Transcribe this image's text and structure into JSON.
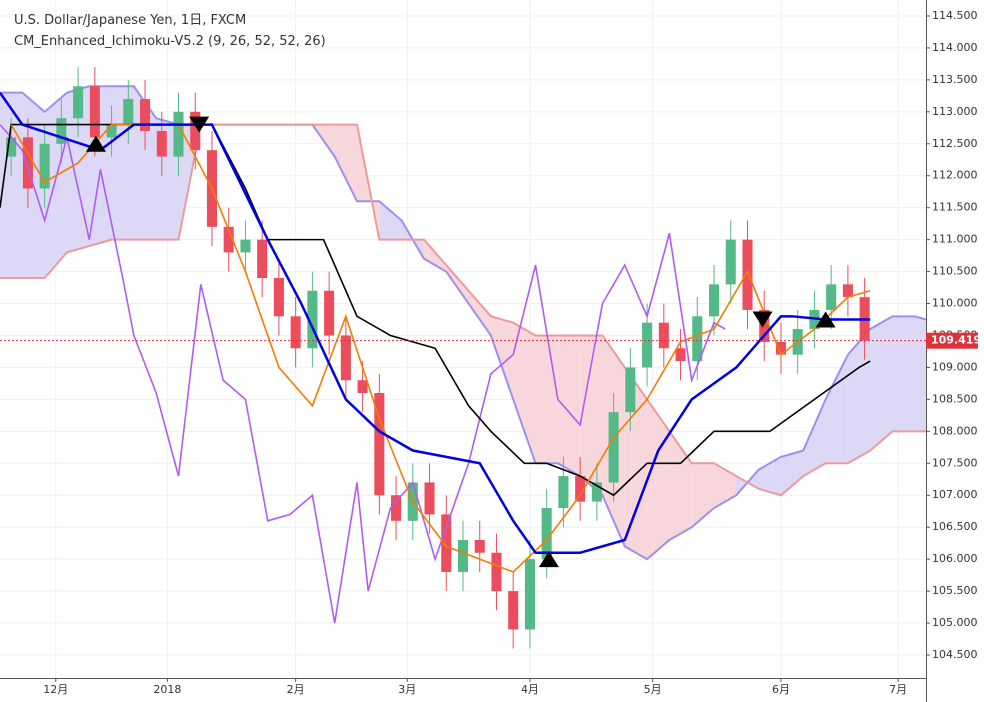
{
  "chart_data": {
    "type": "candlestick",
    "title": "U.S. Dollar/Japanese Yen, 1日, FXCM",
    "subtitle": "CM_Enhanced_Ichimoku-V5.2 (9, 26, 52, 52, 26)",
    "xlim": [
      -8,
      158
    ],
    "ylim": [
      104.14,
      114.75
    ],
    "xticks": [
      {
        "value": 2,
        "label": "12月"
      },
      {
        "value": 22,
        "label": "2018"
      },
      {
        "value": 45,
        "label": "2月"
      },
      {
        "value": 65,
        "label": "3月"
      },
      {
        "value": 87,
        "label": "4月"
      },
      {
        "value": 109,
        "label": "5月"
      },
      {
        "value": 132,
        "label": "6月"
      },
      {
        "value": 153,
        "label": "7月"
      }
    ],
    "yticks": [
      {
        "value": 104.5,
        "label": "104.500"
      },
      {
        "value": 105,
        "label": "105.000"
      },
      {
        "value": 105.5,
        "label": "105.500"
      },
      {
        "value": 106,
        "label": "106.000"
      },
      {
        "value": 106.5,
        "label": "106.500"
      },
      {
        "value": 107,
        "label": "107.000"
      },
      {
        "value": 107.5,
        "label": "107.500"
      },
      {
        "value": 108,
        "label": "108.000"
      },
      {
        "value": 108.5,
        "label": "108.500"
      },
      {
        "value": 109,
        "label": "109.000"
      },
      {
        "value": 109.5,
        "label": "109.500"
      },
      {
        "value": 110,
        "label": "110.000"
      },
      {
        "value": 110.5,
        "label": "110.500"
      },
      {
        "value": 111,
        "label": "111.000"
      },
      {
        "value": 111.5,
        "label": "111.500"
      },
      {
        "value": 112,
        "label": "112.000"
      },
      {
        "value": 112.5,
        "label": "112.500"
      },
      {
        "value": 113,
        "label": "113.000"
      },
      {
        "value": 113.5,
        "label": "113.500"
      },
      {
        "value": 114,
        "label": "114.000"
      },
      {
        "value": 114.5,
        "label": "114.500"
      }
    ],
    "grid": true,
    "up_color": "#53b987",
    "down_color": "#eb4d5c",
    "candles": {
      "x": [
        -6,
        -3,
        0,
        3,
        6,
        9,
        12,
        15,
        18,
        21,
        24,
        27,
        30,
        33,
        36,
        39,
        42,
        45,
        48,
        51,
        54,
        57,
        60,
        63,
        66,
        69,
        72,
        75,
        78,
        81,
        84,
        87,
        90,
        93,
        96,
        99,
        102,
        105,
        108,
        111,
        114,
        117,
        120,
        123,
        126,
        129,
        132,
        135,
        138,
        141,
        144,
        147
      ],
      "open": [
        112.3,
        112.6,
        111.8,
        112.5,
        112.9,
        113.4,
        112.6,
        112.8,
        113.2,
        112.7,
        112.3,
        113.0,
        112.4,
        111.2,
        110.8,
        111.0,
        110.4,
        109.8,
        109.3,
        110.2,
        109.5,
        108.8,
        108.6,
        107.0,
        106.6,
        107.2,
        106.7,
        105.8,
        106.3,
        106.1,
        105.5,
        104.9,
        106.0,
        106.8,
        107.3,
        106.9,
        107.2,
        108.3,
        109.0,
        109.7,
        109.3,
        109.1,
        109.8,
        110.3,
        111.0,
        109.9,
        109.4,
        109.2,
        109.6,
        109.9,
        110.3,
        110.1
      ],
      "high": [
        112.9,
        112.9,
        112.8,
        113.2,
        113.7,
        113.7,
        113.1,
        113.5,
        113.5,
        113.0,
        113.3,
        113.3,
        112.7,
        111.5,
        111.3,
        111.3,
        110.7,
        110.1,
        110.5,
        110.5,
        109.8,
        109.1,
        108.9,
        107.3,
        107.5,
        107.5,
        107.0,
        106.6,
        106.6,
        106.4,
        105.8,
        106.3,
        107.1,
        107.6,
        107.6,
        107.5,
        108.6,
        109.3,
        110.0,
        110.0,
        109.6,
        110.1,
        110.6,
        111.3,
        111.3,
        110.2,
        109.7,
        109.9,
        110.2,
        110.6,
        110.6,
        110.4
      ],
      "low": [
        112.0,
        111.5,
        111.5,
        112.2,
        112.6,
        112.3,
        112.3,
        112.5,
        112.4,
        112.0,
        112.0,
        112.1,
        110.9,
        110.5,
        110.5,
        110.1,
        109.5,
        109.0,
        109.0,
        109.2,
        108.5,
        108.3,
        106.7,
        106.3,
        106.3,
        106.4,
        105.5,
        105.5,
        105.8,
        105.2,
        104.6,
        104.6,
        105.7,
        106.5,
        106.6,
        106.6,
        106.9,
        108.0,
        108.7,
        109.0,
        108.8,
        108.8,
        109.5,
        110.0,
        109.6,
        109.1,
        108.9,
        108.9,
        109.3,
        109.6,
        109.8,
        109.12
      ],
      "close": [
        112.6,
        111.8,
        112.5,
        112.9,
        113.4,
        112.6,
        112.8,
        113.2,
        112.7,
        112.3,
        113.0,
        112.4,
        111.2,
        110.8,
        111.0,
        110.4,
        109.8,
        109.3,
        110.2,
        109.5,
        108.8,
        108.6,
        107.0,
        106.6,
        107.2,
        106.7,
        105.8,
        106.3,
        106.1,
        105.5,
        104.9,
        106.0,
        106.8,
        107.3,
        106.9,
        107.2,
        108.3,
        109.0,
        109.7,
        109.3,
        109.1,
        109.8,
        110.3,
        111.0,
        109.9,
        109.4,
        109.2,
        109.6,
        109.9,
        110.3,
        110.1,
        109.419
      ]
    },
    "cloud": {
      "x": [
        -8,
        -4,
        0,
        4,
        8,
        12,
        16,
        20,
        24,
        28,
        32,
        36,
        40,
        44,
        48,
        52,
        56,
        60,
        64,
        68,
        72,
        76,
        80,
        84,
        88,
        92,
        96,
        100,
        104,
        108,
        112,
        116,
        120,
        124,
        128,
        132,
        136,
        140,
        144,
        148,
        152,
        156,
        158
      ],
      "span_a": [
        113.3,
        113.3,
        113.0,
        113.3,
        113.4,
        113.4,
        113.4,
        112.9,
        112.8,
        112.8,
        112.8,
        112.8,
        112.8,
        112.8,
        112.8,
        112.3,
        111.6,
        111.6,
        111.3,
        110.7,
        110.5,
        110.0,
        109.5,
        108.5,
        107.5,
        107.5,
        107.3,
        107.0,
        106.2,
        106.0,
        106.3,
        106.5,
        106.8,
        107.0,
        107.4,
        107.6,
        107.7,
        108.5,
        109.2,
        109.6,
        109.8,
        109.8,
        109.75
      ],
      "span_b": [
        110.4,
        110.4,
        110.4,
        110.8,
        110.9,
        111.0,
        111.0,
        111.0,
        111.0,
        112.8,
        112.8,
        112.8,
        112.8,
        112.8,
        112.8,
        112.8,
        112.8,
        111.0,
        111.0,
        111.0,
        110.6,
        110.2,
        109.8,
        109.7,
        109.5,
        109.5,
        109.5,
        109.5,
        109.0,
        108.5,
        108.0,
        107.5,
        107.5,
        107.3,
        107.1,
        107.0,
        107.3,
        107.5,
        107.5,
        107.7,
        108.0,
        108.0,
        108.0
      ],
      "a_color": "#9d8ff0",
      "b_color": "#ef9a9a",
      "bull_fill": "#dcd8f6",
      "bear_fill": "#f8d7dc"
    },
    "series": [
      {
        "color": "#b05cf0",
        "x": [
          -8,
          -4,
          0,
          4,
          8,
          10,
          14,
          16,
          20,
          24,
          28,
          32,
          36,
          40,
          44,
          48,
          52,
          56,
          58,
          62,
          66,
          70,
          72,
          76,
          80,
          84,
          88,
          92,
          96,
          100,
          104,
          108,
          112,
          116,
          120,
          122
        ],
        "values": [
          112.8,
          112.4,
          111.3,
          112.6,
          111.0,
          112.1,
          110.4,
          109.5,
          108.6,
          107.3,
          110.3,
          108.8,
          108.5,
          106.6,
          106.7,
          107.0,
          105.0,
          107.2,
          105.5,
          106.8,
          107.2,
          106.0,
          106.5,
          107.5,
          108.9,
          109.2,
          110.6,
          108.5,
          108.1,
          110.0,
          110.6,
          109.8,
          111.1,
          108.8,
          109.7,
          109.6
        ]
      },
      {
        "color": "#000000",
        "x": [
          -8,
          -6,
          10,
          20,
          30,
          36,
          40,
          50,
          56,
          62,
          70,
          76,
          80,
          86,
          90,
          96,
          102,
          108,
          114,
          120,
          130,
          138,
          146,
          148
        ],
        "values": [
          111.5,
          112.8,
          112.8,
          112.8,
          112.8,
          111.8,
          111.0,
          111.0,
          109.8,
          109.5,
          109.3,
          108.4,
          108.0,
          107.5,
          107.5,
          107.3,
          107.0,
          107.5,
          107.5,
          108.0,
          108.0,
          108.5,
          109.0,
          109.1
        ]
      },
      {
        "color": "#f57c00",
        "x": [
          -6,
          0,
          6,
          12,
          18,
          24,
          30,
          36,
          42,
          48,
          54,
          60,
          66,
          72,
          78,
          84,
          90,
          96,
          102,
          108,
          114,
          120,
          126,
          132,
          138,
          144,
          148
        ],
        "values": [
          112.8,
          111.9,
          112.2,
          112.8,
          112.8,
          112.8,
          111.8,
          110.5,
          109.0,
          108.4,
          109.8,
          108.2,
          106.9,
          106.2,
          106.0,
          105.8,
          106.3,
          107.0,
          107.9,
          108.5,
          109.4,
          109.6,
          110.5,
          109.2,
          109.6,
          110.1,
          110.2
        ]
      },
      {
        "color": "#0000e0",
        "x": [
          -8,
          -4,
          10,
          16,
          30,
          40,
          46,
          54,
          60,
          66,
          78,
          84,
          88,
          96,
          104,
          110,
          116,
          124,
          132,
          134,
          140,
          148
        ],
        "values": [
          113.3,
          112.8,
          112.4,
          112.8,
          112.8,
          111.0,
          110.0,
          108.5,
          108.0,
          107.7,
          107.5,
          106.6,
          106.1,
          106.1,
          106.3,
          107.7,
          108.5,
          109.0,
          109.8,
          109.8,
          109.75,
          109.75
        ]
      }
    ],
    "signals": {
      "up": {
        "x": [
          9.2,
          90.4,
          140
        ],
        "values": [
          112.5,
          106.0,
          109.75
        ]
      },
      "down": {
        "x": [
          27.7,
          128.7
        ],
        "values": [
          112.8,
          109.75
        ]
      }
    },
    "last_price": 109.419,
    "last_color": "#e0303a"
  }
}
